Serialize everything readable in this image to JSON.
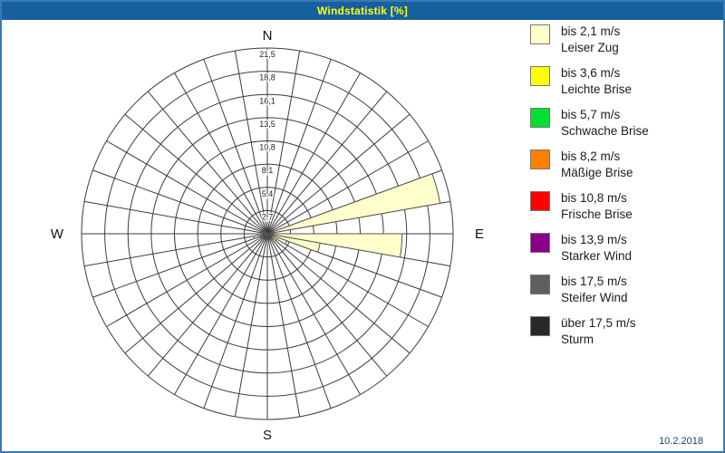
{
  "window": {
    "title": "Windstatistik [%]",
    "date": "10.2.2018"
  },
  "colors": {
    "titlebar_bg": "#1760a0",
    "title_text": "#ffff00",
    "frame_border": "#3a79b5",
    "grid_line": "#3c3c3c",
    "wedge_outline": "#555555"
  },
  "legend": [
    {
      "color": "#FFFFCC",
      "speed": "bis 2,1 m/s",
      "name": "Leiser Zug"
    },
    {
      "color": "#FFFF00",
      "speed": "bis 3,6 m/s",
      "name": "Leichte Brise"
    },
    {
      "color": "#00DD33",
      "speed": "bis 5,7 m/s",
      "name": "Schwache Brise"
    },
    {
      "color": "#FF8000",
      "speed": "bis 8,2 m/s",
      "name": "Mäßige Brise"
    },
    {
      "color": "#FF0000",
      "speed": "bis 10,8 m/s",
      "name": "Frische Brise"
    },
    {
      "color": "#880088",
      "speed": "bis 13,9 m/s",
      "name": "Starker Wind"
    },
    {
      "color": "#5f5f5f",
      "speed": "bis 17,5 m/s",
      "name": "Steifer Wind"
    },
    {
      "color": "#282828",
      "speed": "über 17,5 m/s",
      "name": "Sturm"
    }
  ],
  "chart_data": {
    "type": "windrose",
    "title": "Windstatistik [%]",
    "units": "%",
    "ring_max": 21.5,
    "ring_step": 2.7,
    "ring_labels": [
      "2,7",
      "5,4",
      "8,1",
      "10,8",
      "13,5",
      "16,1",
      "18,8",
      "21,5"
    ],
    "sector_width_deg": 10,
    "compass": {
      "n": "N",
      "e": "E",
      "s": "S",
      "w": "W"
    },
    "series": [
      {
        "name": "bis 2,1 m/s",
        "color": "#FFFFCC",
        "points": [
          {
            "azimuth_deg": 75,
            "value": 20.3
          },
          {
            "azimuth_deg": 95,
            "value": 15.6
          },
          {
            "azimuth_deg": 105,
            "value": 6.2
          },
          {
            "azimuth_deg": 115,
            "value": 2.4
          },
          {
            "azimuth_deg": 125,
            "value": 1.3
          },
          {
            "azimuth_deg": 255,
            "value": 1.6
          },
          {
            "azimuth_deg": 265,
            "value": 1.1
          },
          {
            "azimuth_deg": 240,
            "value": 0.9
          },
          {
            "azimuth_deg": 285,
            "value": 0.8
          },
          {
            "azimuth_deg": 195,
            "value": 0.6
          },
          {
            "azimuth_deg": 165,
            "value": 0.5
          },
          {
            "azimuth_deg": 315,
            "value": 0.5
          }
        ]
      }
    ]
  }
}
